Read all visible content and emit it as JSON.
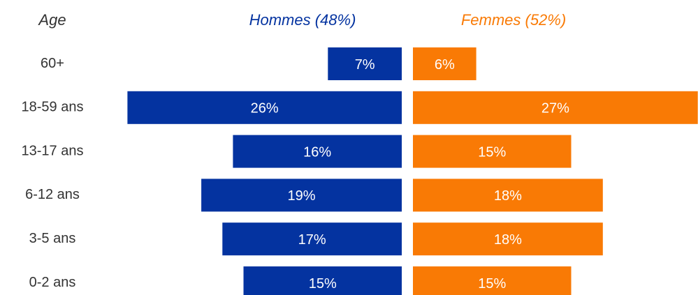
{
  "chart_data": {
    "type": "pyramid",
    "y_label": "Age",
    "categories": [
      "60+",
      "18-59 ans",
      "13-17 ans",
      "6-12 ans",
      "3-5 ans",
      "0-2 ans"
    ],
    "series": [
      {
        "name": "Hommes (48%)",
        "color": "#0433a0",
        "values": [
          7,
          26,
          16,
          19,
          17,
          15
        ],
        "value_labels": [
          "7%",
          "26%",
          "16%",
          "19%",
          "17%",
          "15%"
        ]
      },
      {
        "name": "Femmes (52%)",
        "color": "#f97a05",
        "values": [
          6,
          27,
          15,
          18,
          18,
          15
        ],
        "value_labels": [
          "6%",
          "27%",
          "15%",
          "18%",
          "18%",
          "15%"
        ]
      }
    ]
  }
}
